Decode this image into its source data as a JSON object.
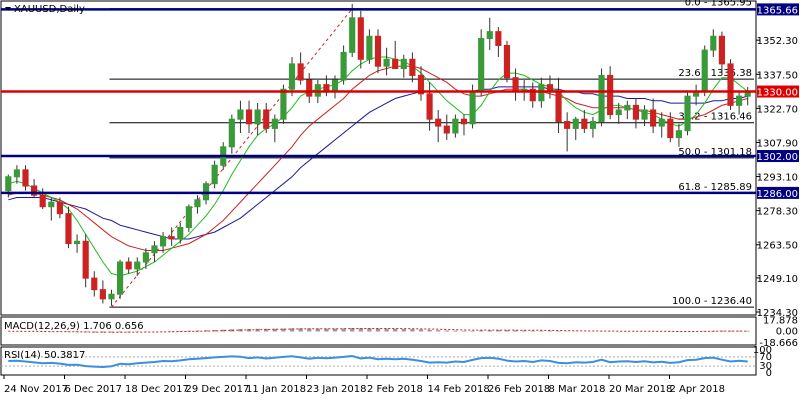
{
  "header": {
    "symbol_label": "XAUUSD,Daily",
    "menu_icon": "triangle-down-icon"
  },
  "price_axis": {
    "ticks": [
      "1352.30",
      "1337.50",
      "1322.70",
      "1307.90",
      "1293.10",
      "1278.30",
      "1263.50",
      "1249.10",
      "1234.30"
    ],
    "ylim": [
      1234.3,
      1368.0
    ]
  },
  "time_axis": {
    "labels": [
      "24 Nov 2017",
      "6 Dec 2017",
      "18 Dec 2017",
      "29 Dec 2017",
      "11 Jan 2018",
      "23 Jan 2018",
      "2 Feb 2018",
      "14 Feb 2018",
      "26 Feb 2018",
      "8 Mar 2018",
      "20 Mar 2018",
      "2 Apr 2018"
    ]
  },
  "levels": [
    {
      "name": "level-1365",
      "value": 1365.66,
      "label": "1365.66",
      "color": "#000080",
      "style": "thick"
    },
    {
      "name": "level-1330",
      "value": 1330.0,
      "label": "1330.00",
      "color": "#dd0000",
      "style": "thick"
    },
    {
      "name": "level-1302",
      "value": 1302.0,
      "label": "1302.00",
      "color": "#000080",
      "style": "thick"
    },
    {
      "name": "level-1286",
      "value": 1286.0,
      "label": "1286.00",
      "color": "#000080",
      "style": "thick"
    }
  ],
  "fibonacci": [
    {
      "name": "fib-0",
      "value": 1365.95,
      "label": "0.0 - 1365.95"
    },
    {
      "name": "fib-23",
      "value": 1335.38,
      "label": "23.6 - 1335.38"
    },
    {
      "name": "fib-38",
      "value": 1316.46,
      "label": "38.2 - 1316.46"
    },
    {
      "name": "fib-50",
      "value": 1301.18,
      "label": "50.0 - 1301.18"
    },
    {
      "name": "fib-61",
      "value": 1285.89,
      "label": "61.8 - 1285.89"
    },
    {
      "name": "fib-100",
      "value": 1236.4,
      "label": "100.0 - 1236.40"
    }
  ],
  "macd": {
    "label": "MACD(12,26,9) 1.706 0.656",
    "ticks": [
      "17.878",
      "0.00",
      "-18.666"
    ]
  },
  "rsi": {
    "label": "RSI(14) 50.3817",
    "ticks": [
      "100",
      "70",
      "30",
      "0"
    ]
  },
  "colors": {
    "bull": "#3a9a3a",
    "bear": "#cc2222",
    "ma_fast": "#22bb22",
    "ma_mid": "#cc2222",
    "ma_slow": "#1a1a99",
    "rsi_line": "#3a8fe0",
    "macd_line": "#cc2222"
  },
  "chart_data": {
    "type": "candlestick",
    "ohlc": [
      [
        1287,
        1294,
        1284,
        1293
      ],
      [
        1293,
        1298,
        1290,
        1296
      ],
      [
        1296,
        1298,
        1287,
        1289
      ],
      [
        1289,
        1292,
        1284,
        1285
      ],
      [
        1285,
        1288,
        1279,
        1280
      ],
      [
        1280,
        1284,
        1274,
        1282
      ],
      [
        1282,
        1284,
        1275,
        1277
      ],
      [
        1277,
        1280,
        1262,
        1264
      ],
      [
        1264,
        1268,
        1260,
        1265
      ],
      [
        1265,
        1268,
        1245,
        1249
      ],
      [
        1249,
        1252,
        1241,
        1244
      ],
      [
        1244,
        1248,
        1238,
        1240
      ],
      [
        1240,
        1244,
        1237,
        1242
      ],
      [
        1242,
        1257,
        1240,
        1256
      ],
      [
        1256,
        1258,
        1251,
        1253
      ],
      [
        1253,
        1258,
        1250,
        1256
      ],
      [
        1256,
        1262,
        1253,
        1260
      ],
      [
        1260,
        1265,
        1256,
        1263
      ],
      [
        1263,
        1269,
        1260,
        1267
      ],
      [
        1267,
        1271,
        1263,
        1266
      ],
      [
        1266,
        1273,
        1264,
        1271
      ],
      [
        1271,
        1281,
        1269,
        1280
      ],
      [
        1280,
        1285,
        1277,
        1283
      ],
      [
        1283,
        1291,
        1281,
        1290
      ],
      [
        1290,
        1300,
        1288,
        1298
      ],
      [
        1298,
        1308,
        1296,
        1306
      ],
      [
        1306,
        1320,
        1303,
        1318
      ],
      [
        1318,
        1326,
        1312,
        1322
      ],
      [
        1322,
        1326,
        1312,
        1316
      ],
      [
        1316,
        1325,
        1311,
        1322
      ],
      [
        1322,
        1325,
        1312,
        1314
      ],
      [
        1314,
        1320,
        1308,
        1318
      ],
      [
        1318,
        1333,
        1316,
        1331
      ],
      [
        1331,
        1345,
        1328,
        1342
      ],
      [
        1342,
        1347,
        1333,
        1335
      ],
      [
        1335,
        1338,
        1325,
        1328
      ],
      [
        1328,
        1335,
        1325,
        1333
      ],
      [
        1333,
        1337,
        1328,
        1330
      ],
      [
        1330,
        1337,
        1327,
        1335
      ],
      [
        1335,
        1350,
        1333,
        1347
      ],
      [
        1347,
        1368,
        1345,
        1362
      ],
      [
        1362,
        1365,
        1340,
        1344
      ],
      [
        1344,
        1357,
        1342,
        1354
      ],
      [
        1354,
        1357,
        1338,
        1341
      ],
      [
        1341,
        1349,
        1337,
        1344
      ],
      [
        1344,
        1352,
        1340,
        1340
      ],
      [
        1340,
        1346,
        1336,
        1344
      ],
      [
        1344,
        1347,
        1334,
        1337
      ],
      [
        1337,
        1341,
        1326,
        1329
      ],
      [
        1329,
        1334,
        1313,
        1318
      ],
      [
        1318,
        1322,
        1308,
        1315
      ],
      [
        1315,
        1320,
        1309,
        1312
      ],
      [
        1312,
        1320,
        1310,
        1318
      ],
      [
        1318,
        1320,
        1311,
        1316
      ],
      [
        1316,
        1333,
        1314,
        1330
      ],
      [
        1330,
        1357,
        1328,
        1353
      ],
      [
        1353,
        1362,
        1348,
        1356
      ],
      [
        1356,
        1358,
        1345,
        1350
      ],
      [
        1350,
        1352,
        1334,
        1336
      ],
      [
        1336,
        1340,
        1326,
        1330
      ],
      [
        1330,
        1335,
        1326,
        1331
      ],
      [
        1331,
        1334,
        1323,
        1326
      ],
      [
        1326,
        1336,
        1323,
        1333
      ],
      [
        1333,
        1337,
        1327,
        1330
      ],
      [
        1330,
        1336,
        1312,
        1317
      ],
      [
        1317,
        1321,
        1304,
        1314
      ],
      [
        1314,
        1319,
        1309,
        1318
      ],
      [
        1318,
        1322,
        1312,
        1314
      ],
      [
        1314,
        1319,
        1310,
        1317
      ],
      [
        1317,
        1340,
        1315,
        1337
      ],
      [
        1337,
        1341,
        1318,
        1320
      ],
      [
        1320,
        1325,
        1316,
        1322
      ],
      [
        1322,
        1326,
        1318,
        1324
      ],
      [
        1324,
        1327,
        1314,
        1318
      ],
      [
        1318,
        1324,
        1315,
        1322
      ],
      [
        1322,
        1327,
        1312,
        1315
      ],
      [
        1315,
        1321,
        1310,
        1318
      ],
      [
        1318,
        1321,
        1308,
        1310
      ],
      [
        1310,
        1316,
        1306,
        1313
      ],
      [
        1313,
        1330,
        1311,
        1328
      ],
      [
        1328,
        1333,
        1324,
        1330
      ],
      [
        1330,
        1350,
        1328,
        1348
      ],
      [
        1348,
        1357,
        1345,
        1354
      ],
      [
        1354,
        1356,
        1338,
        1342
      ],
      [
        1342,
        1344,
        1322,
        1324
      ],
      [
        1324,
        1330,
        1320,
        1328
      ],
      [
        1328,
        1332,
        1324,
        1330
      ]
    ],
    "ma_fast": [
      1290,
      1291,
      1290,
      1288,
      1286,
      1284,
      1282,
      1279,
      1274,
      1268,
      1262,
      1256,
      1251,
      1250,
      1251,
      1252,
      1254,
      1256,
      1259,
      1262,
      1265,
      1268,
      1272,
      1276,
      1281,
      1287,
      1294,
      1300,
      1306,
      1311,
      1314,
      1316,
      1319,
      1323,
      1328,
      1330,
      1331,
      1332,
      1333,
      1335,
      1339,
      1342,
      1344,
      1345,
      1345,
      1344,
      1343,
      1341,
      1338,
      1334,
      1330,
      1326,
      1323,
      1320,
      1320,
      1324,
      1330,
      1335,
      1338,
      1338,
      1337,
      1335,
      1333,
      1332,
      1330,
      1326,
      1323,
      1321,
      1320,
      1322,
      1324,
      1324,
      1323,
      1322,
      1321,
      1320,
      1318,
      1316,
      1315,
      1317,
      1320,
      1325,
      1331,
      1336,
      1336,
      1333,
      1330
    ],
    "ma_mid": [
      1285,
      1286,
      1286,
      1286,
      1285,
      1284,
      1283,
      1281,
      1279,
      1276,
      1273,
      1270,
      1267,
      1265,
      1263,
      1262,
      1261,
      1261,
      1261,
      1262,
      1263,
      1264,
      1266,
      1268,
      1271,
      1274,
      1278,
      1282,
      1286,
      1290,
      1294,
      1298,
      1302,
      1306,
      1311,
      1315,
      1318,
      1321,
      1324,
      1327,
      1331,
      1334,
      1337,
      1339,
      1340,
      1341,
      1341,
      1341,
      1340,
      1338,
      1336,
      1334,
      1331,
      1329,
      1328,
      1328,
      1329,
      1330,
      1331,
      1331,
      1331,
      1330,
      1330,
      1329,
      1328,
      1327,
      1325,
      1324,
      1323,
      1323,
      1323,
      1323,
      1323,
      1322,
      1322,
      1321,
      1320,
      1319,
      1318,
      1318,
      1319,
      1320,
      1322,
      1324,
      1325,
      1326,
      1327
    ],
    "ma_slow": [
      1283,
      1284,
      1284,
      1284,
      1284,
      1283,
      1282,
      1281,
      1280,
      1279,
      1277,
      1275,
      1274,
      1272,
      1271,
      1270,
      1269,
      1268,
      1267,
      1266,
      1266,
      1266,
      1267,
      1268,
      1269,
      1271,
      1273,
      1275,
      1278,
      1281,
      1284,
      1287,
      1290,
      1293,
      1297,
      1300,
      1303,
      1306,
      1309,
      1312,
      1315,
      1318,
      1321,
      1323,
      1325,
      1327,
      1328,
      1329,
      1330,
      1330,
      1330,
      1330,
      1330,
      1330,
      1330,
      1331,
      1331,
      1332,
      1332,
      1332,
      1332,
      1332,
      1332,
      1331,
      1331,
      1330,
      1330,
      1329,
      1329,
      1328,
      1328,
      1328,
      1327,
      1327,
      1327,
      1326,
      1326,
      1325,
      1325,
      1325,
      1325,
      1325,
      1326,
      1326,
      1327,
      1327,
      1328
    ],
    "rsi": [
      52,
      53,
      50,
      46,
      42,
      44,
      41,
      35,
      36,
      30,
      28,
      26,
      29,
      40,
      38,
      42,
      45,
      48,
      52,
      51,
      55,
      60,
      62,
      65,
      68,
      70,
      72,
      71,
      65,
      68,
      63,
      66,
      70,
      73,
      68,
      62,
      66,
      64,
      67,
      70,
      74,
      63,
      67,
      60,
      62,
      60,
      62,
      58,
      52,
      45,
      47,
      45,
      50,
      48,
      57,
      65,
      66,
      62,
      54,
      50,
      52,
      48,
      55,
      52,
      44,
      42,
      47,
      45,
      48,
      58,
      47,
      50,
      51,
      48,
      51,
      46,
      49,
      44,
      47,
      56,
      58,
      65,
      67,
      58,
      50,
      53,
      50
    ],
    "macd_hist": [
      0.2,
      0.1,
      0.0,
      -0.2,
      -0.4,
      -0.5,
      -0.6,
      -0.9,
      -1.1,
      -1.4,
      -1.6,
      -1.7,
      -1.6,
      -1.2,
      -1.0,
      -0.8,
      -0.5,
      -0.2,
      0.2,
      0.5,
      0.8,
      1.2,
      1.6,
      2.0,
      2.5,
      3.0,
      3.6,
      4.0,
      4.2,
      4.4,
      4.4,
      4.5,
      4.8,
      5.2,
      5.2,
      4.9,
      4.8,
      4.7,
      4.7,
      4.9,
      5.4,
      5.2,
      5.2,
      4.9,
      4.7,
      4.4,
      4.2,
      3.9,
      3.4,
      2.7,
      2.2,
      1.7,
      1.4,
      1.1,
      1.2,
      1.7,
      2.2,
      2.4,
      2.2,
      1.9,
      1.7,
      1.4,
      1.4,
      1.3,
      0.9,
      0.5,
      0.3,
      0.1,
      0.0,
      0.3,
      0.2,
      0.2,
      0.2,
      0.1,
      0.1,
      0.0,
      -0.1,
      -0.3,
      -0.4,
      -0.1,
      0.1,
      0.7,
      1.2,
      1.5,
      1.4,
      1.2,
      1.1
    ],
    "macd_signal": [
      0.3,
      0.3,
      0.2,
      0.1,
      0.0,
      -0.1,
      -0.2,
      -0.4,
      -0.5,
      -0.7,
      -0.9,
      -1.0,
      -1.1,
      -1.1,
      -1.1,
      -1.0,
      -0.9,
      -0.8,
      -0.6,
      -0.4,
      -0.2,
      0.1,
      0.4,
      0.7,
      1.0,
      1.4,
      1.8,
      2.2,
      2.6,
      2.9,
      3.2,
      3.5,
      3.7,
      4.0,
      4.2,
      4.4,
      4.5,
      4.5,
      4.6,
      4.6,
      4.8,
      4.9,
      4.9,
      4.9,
      4.9,
      4.8,
      4.7,
      4.5,
      4.3,
      4.0,
      3.7,
      3.3,
      3.0,
      2.6,
      2.3,
      2.2,
      2.2,
      2.2,
      2.2,
      2.1,
      2.1,
      2.0,
      1.9,
      1.8,
      1.6,
      1.4,
      1.2,
      1.0,
      0.8,
      0.7,
      0.6,
      0.5,
      0.5,
      0.4,
      0.3,
      0.3,
      0.2,
      0.1,
      0.0,
      0.0,
      0.0,
      0.2,
      0.4,
      0.6,
      0.7,
      0.7,
      0.7
    ],
    "fib_trendline": {
      "from_index": 12,
      "from_price": 1236.4,
      "to_index": 40,
      "to_price": 1365.95
    }
  }
}
